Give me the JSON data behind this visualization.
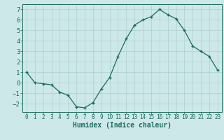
{
  "x": [
    0,
    1,
    2,
    3,
    4,
    5,
    6,
    7,
    8,
    9,
    10,
    11,
    12,
    13,
    14,
    15,
    16,
    17,
    18,
    19,
    20,
    21,
    22,
    23
  ],
  "y": [
    1.0,
    0.0,
    -0.1,
    -0.2,
    -0.9,
    -1.2,
    -2.3,
    -2.4,
    -1.9,
    -0.6,
    0.5,
    2.5,
    4.2,
    5.5,
    6.0,
    6.3,
    7.0,
    6.5,
    6.1,
    5.0,
    3.5,
    3.0,
    2.5,
    1.2
  ],
  "xlabel": "Humidex (Indice chaleur)",
  "ylim": [
    -2.8,
    7.5
  ],
  "xlim": [
    -0.5,
    23.5
  ],
  "yticks": [
    -2,
    -1,
    0,
    1,
    2,
    3,
    4,
    5,
    6,
    7
  ],
  "xticks": [
    0,
    1,
    2,
    3,
    4,
    5,
    6,
    7,
    8,
    9,
    10,
    11,
    12,
    13,
    14,
    15,
    16,
    17,
    18,
    19,
    20,
    21,
    22,
    23
  ],
  "line_color": "#1a6b5e",
  "marker_color": "#1a6b5e",
  "bg_color": "#cde8e8",
  "grid_color": "#aed0cc",
  "axis_color": "#1a6b5e",
  "label_color": "#1a6b5e",
  "tick_label_color": "#1a6b5e",
  "xlabel_fontsize": 7,
  "tick_fontsize_x": 5.5,
  "tick_fontsize_y": 6.5
}
